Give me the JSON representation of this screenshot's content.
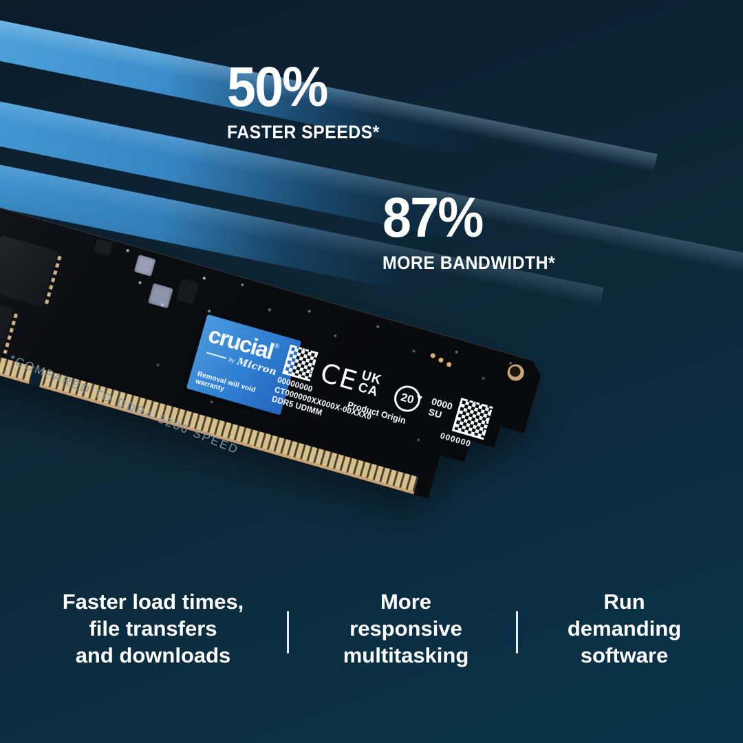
{
  "colors": {
    "bg_top": "#0a1b2a",
    "bg_mid": "#0e2838",
    "bg_bottom": "#083349",
    "accent_blue": "#3d97d3",
    "label_blue": "#2e7ed2",
    "footnote_color": "#8093a4",
    "pcb_black": "#0b0c10",
    "pin_gold": "#d6c18c",
    "edge_tan": "#c9a177",
    "text_white": "#ffffff"
  },
  "stats": [
    {
      "value": "50%",
      "label": "FASTER SPEEDS*"
    },
    {
      "value": "87%",
      "label": "MORE BANDWIDTH*"
    }
  ],
  "footnote": "*COMPARED TO DDR4-3200 SPEED",
  "module": {
    "brand_label": {
      "brand": "crucial",
      "registered": "®",
      "by": "by",
      "micron": "Micron",
      "warranty": "Removal will void warranty"
    },
    "info_label": {
      "serial": "00000000",
      "part": "CT000000XX000X-00XXX0",
      "type": "DDR5 UDIMM",
      "origin": "Product Origin",
      "ce": "CE",
      "ukca_line1": "UK",
      "ukca_line2": "CA",
      "epup_years": "20",
      "code_top": "0000",
      "code_bottom": "SU",
      "code_serial": "000000"
    }
  },
  "benefits": [
    {
      "lines": [
        "Faster load times,",
        "file transfers",
        "and downloads"
      ]
    },
    {
      "lines": [
        "More",
        "responsive",
        "multitasking"
      ]
    },
    {
      "lines": [
        "Run",
        "demanding",
        "software"
      ]
    }
  ]
}
